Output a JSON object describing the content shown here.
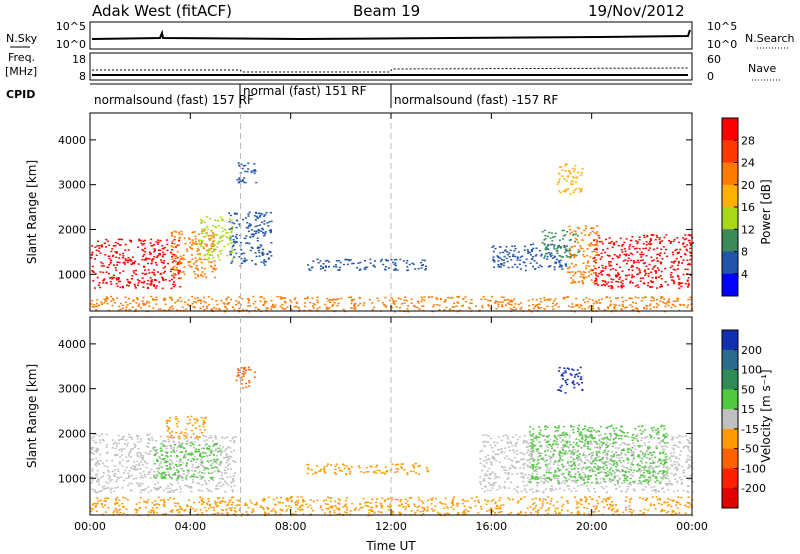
{
  "header": {
    "radar": "Adak West (fitACF)",
    "beam": "Beam 19",
    "date": "19/Nov/2012"
  },
  "top_panels": {
    "nsky_label": "N.Sky",
    "nsearch_label": "N.Search",
    "nsky_ticks": [
      "10^5",
      "10^0"
    ],
    "nsearch_ticks": [
      "10^5",
      "10^0"
    ],
    "freq_label_1": "Freq.",
    "freq_label_2": "[MHz]",
    "freq_ticks": [
      "18",
      "8"
    ],
    "nave_label": "Nave",
    "nave_ticks": [
      "60",
      "0"
    ],
    "cpid_label": "CPID",
    "cpid_segments": [
      {
        "text": "normalsound (fast) 157 RF",
        "start_hr": 0,
        "end_hr": 6
      },
      {
        "text": "normal (fast) 151 RF",
        "start_hr": 6,
        "end_hr": 12
      },
      {
        "text": "normalsound (fast) -157 RF",
        "start_hr": 12,
        "end_hr": 24
      }
    ]
  },
  "power_colorbar": {
    "label": "Power [dB]",
    "ticks": [
      "28",
      "24",
      "20",
      "16",
      "12",
      "8",
      "4"
    ],
    "colors": [
      "#ff0000",
      "#ff3a00",
      "#ff7a00",
      "#ffb000",
      "#a8d818",
      "#3c8a5a",
      "#2255aa",
      "#0000ff"
    ]
  },
  "velocity_colorbar": {
    "label": "Velocity [m s⁻¹]",
    "ticks": [
      "200",
      "100",
      "50",
      "15",
      "-15",
      "-50",
      "-100",
      "-200"
    ],
    "colors": [
      "#1030b0",
      "#2a6a8a",
      "#2e8b57",
      "#50c840",
      "#c0c0c0",
      "#ff9a00",
      "#ff6000",
      "#ff2000",
      "#e00000"
    ]
  },
  "chart_data": {
    "type": "heatmap",
    "xlabel": "Time UT",
    "ylabel": "Slant Range [km]",
    "x_ticks": [
      "00:00",
      "04:00",
      "08:00",
      "12:00",
      "16:00",
      "20:00",
      "00:00"
    ],
    "y_ticks": [
      "1000",
      "2000",
      "3000",
      "4000"
    ],
    "xlim_hours": [
      0,
      24
    ],
    "ylim_km": [
      180,
      4600
    ],
    "power_regions": [
      {
        "t0": 0.0,
        "t1": 3.6,
        "r0": 700,
        "r1": 1800,
        "color": "#ff0000"
      },
      {
        "t0": 3.2,
        "t1": 5.0,
        "r0": 900,
        "r1": 2000,
        "color": "#ff7a00"
      },
      {
        "t0": 4.3,
        "t1": 5.7,
        "r0": 1300,
        "r1": 2300,
        "color": "#a8d818"
      },
      {
        "t0": 5.5,
        "t1": 7.2,
        "r0": 1200,
        "r1": 2400,
        "color": "#2255aa"
      },
      {
        "t0": 5.8,
        "t1": 6.6,
        "r0": 3000,
        "r1": 3500,
        "color": "#2255aa"
      },
      {
        "t0": 8.5,
        "t1": 13.5,
        "r0": 1100,
        "r1": 1350,
        "color": "#2255aa"
      },
      {
        "t0": 16.0,
        "t1": 19.0,
        "r0": 1100,
        "r1": 1700,
        "color": "#2255aa"
      },
      {
        "t0": 18.0,
        "t1": 19.5,
        "r0": 1400,
        "r1": 2000,
        "color": "#3c8a5a"
      },
      {
        "t0": 19.0,
        "t1": 20.2,
        "r0": 800,
        "r1": 2100,
        "color": "#ff7a00"
      },
      {
        "t0": 20.0,
        "t1": 24.0,
        "r0": 700,
        "r1": 1900,
        "color": "#ff0000"
      },
      {
        "t0": 18.6,
        "t1": 19.6,
        "r0": 2800,
        "r1": 3500,
        "color": "#ffb000"
      },
      {
        "t0": 0.0,
        "t1": 24.0,
        "r0": 180,
        "r1": 520,
        "color": "#ff7a00"
      }
    ],
    "velocity_regions": [
      {
        "t0": 0.0,
        "t1": 5.8,
        "r0": 700,
        "r1": 2000,
        "color": "#c0c0c0"
      },
      {
        "t0": 3.0,
        "t1": 4.6,
        "r0": 1900,
        "r1": 2400,
        "color": "#ff9a00"
      },
      {
        "t0": 2.5,
        "t1": 5.2,
        "r0": 1000,
        "r1": 1800,
        "color": "#50c840"
      },
      {
        "t0": 8.5,
        "t1": 13.5,
        "r0": 1100,
        "r1": 1350,
        "color": "#ff9a00"
      },
      {
        "t0": 5.8,
        "t1": 6.6,
        "r0": 3000,
        "r1": 3500,
        "color": "#ff6000"
      },
      {
        "t0": 15.5,
        "t1": 24.0,
        "r0": 700,
        "r1": 2000,
        "color": "#c0c0c0"
      },
      {
        "t0": 17.5,
        "t1": 23.0,
        "r0": 900,
        "r1": 2200,
        "color": "#50c840"
      },
      {
        "t0": 18.6,
        "t1": 19.6,
        "r0": 2900,
        "r1": 3500,
        "color": "#1030b0"
      },
      {
        "t0": 0.0,
        "t1": 24.0,
        "r0": 180,
        "r1": 600,
        "color": "#ff9a00"
      }
    ]
  }
}
